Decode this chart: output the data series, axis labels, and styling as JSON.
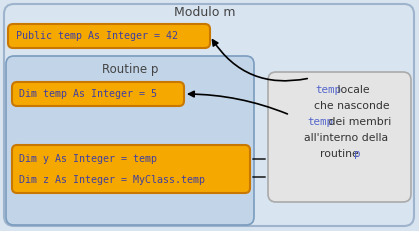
{
  "bg_color": "#d8e4f0",
  "outer_box": {
    "color": "#d8e4f0",
    "edge": "#9eb3cc",
    "lw": 1.5
  },
  "routine_box": {
    "color": "#c2d4e8",
    "edge": "#7a9cbf",
    "lw": 1.2
  },
  "callout_box": {
    "color": "#e4e4e4",
    "edge": "#aaaaaa",
    "lw": 1.2
  },
  "orange_box": {
    "color": "#f5a800",
    "edge": "#c87800",
    "lw": 1.5
  },
  "text_code": "#4040a0",
  "text_label": "#444444",
  "text_mono_blue": "#5566cc",
  "text_dark": "#333333",
  "modulo_label": "Modulo m",
  "routine_label": "Routine p",
  "public_text": "Public temp As Integer = 42",
  "dim_temp_text": "Dim temp As Integer = 5",
  "dim_y_text": "Dim y As Integer = temp",
  "dim_z_text": "Dim z As Integer = MyClass.temp",
  "callout_line1_mono": "temp",
  "callout_line1_normal": " locale",
  "callout_line2": "che nasconde",
  "callout_line3_mono": "temp",
  "callout_line3_normal": " dei membri",
  "callout_line4": "all'interno della",
  "callout_line5_normal": "routine ",
  "callout_line5_mono": "p"
}
